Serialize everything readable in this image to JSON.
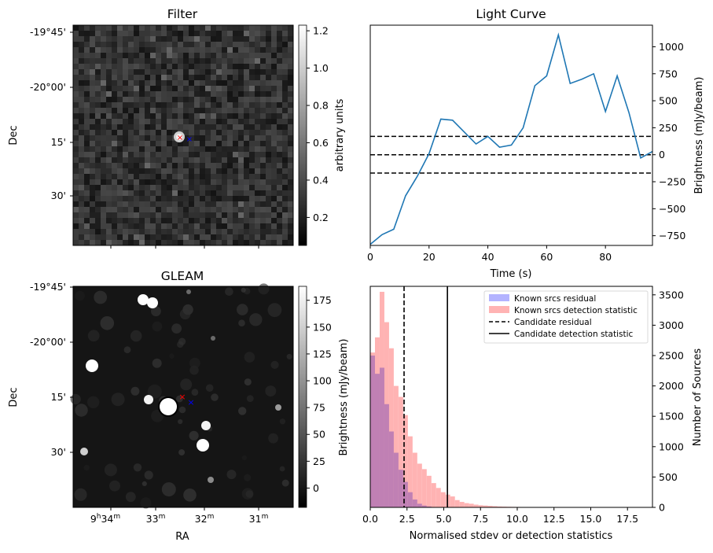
{
  "colors": {
    "line": "#1f77b4",
    "hist_residual": "#b3b3ff",
    "hist_detection": "#ffb3b3",
    "overlap": "#c080b4",
    "marker_a": "#ff0000",
    "marker_b": "#0000ff"
  },
  "panels": {
    "filter": {
      "title": "Filter",
      "ylabel": "Dec",
      "yticks": [
        "-19°45'",
        "-20°00'",
        "15'",
        "30'"
      ],
      "colorbar": {
        "label": "arbitrary units",
        "ticks": [
          "0.2",
          "0.4",
          "0.6",
          "0.8",
          "1.0",
          "1.2"
        ],
        "range": [
          0.05,
          1.23
        ]
      }
    },
    "gleam": {
      "title": "GLEAM",
      "ylabel": "Dec",
      "xlabel": "RA",
      "yticks": [
        "-19°45'",
        "-20°00'",
        "15'",
        "30'"
      ],
      "xticks": [
        {
          "main": "9",
          "sup1": "h",
          "mid": "34",
          "sup2": "m"
        },
        {
          "main": "",
          "sup1": "",
          "mid": "33",
          "sup2": "m"
        },
        {
          "main": "",
          "sup1": "",
          "mid": "32",
          "sup2": "m"
        },
        {
          "main": "",
          "sup1": "",
          "mid": "31",
          "sup2": "m"
        }
      ],
      "colorbar": {
        "label": "Brightness (mJy/beam)",
        "ticks": [
          "0",
          "25",
          "50",
          "75",
          "100",
          "125",
          "150",
          "175"
        ],
        "range": [
          -18,
          188
        ]
      }
    }
  },
  "chart_data": [
    {
      "type": "line",
      "title": "Light Curve",
      "xlabel": "Time (s)",
      "ylabel": "Brightness (mJy/beam)",
      "xlim": [
        0,
        96
      ],
      "ylim": [
        -840,
        1200
      ],
      "xticks": [
        0,
        20,
        40,
        60,
        80
      ],
      "yticks": [
        -750,
        -500,
        -250,
        0,
        250,
        500,
        750,
        1000
      ],
      "x": [
        0,
        4,
        8,
        12,
        16,
        20,
        24,
        28,
        32,
        36,
        40,
        44,
        48,
        52,
        56,
        60,
        64,
        68,
        72,
        76,
        80,
        84,
        88,
        92,
        96
      ],
      "y": [
        -830,
        -740,
        -690,
        -380,
        -200,
        10,
        330,
        320,
        210,
        100,
        170,
        70,
        90,
        250,
        640,
        730,
        1110,
        660,
        700,
        750,
        400,
        730,
        390,
        -30,
        30
      ],
      "hlines": [
        {
          "y": 0,
          "style": "dashed"
        },
        {
          "y": 170,
          "style": "dashed"
        },
        {
          "y": -170,
          "style": "dashed"
        }
      ]
    },
    {
      "type": "histogram",
      "xlabel": "Normalised stdev or detection statistics",
      "ylabel": "Number of Sources",
      "xlim": [
        0,
        19.2
      ],
      "ylim": [
        0,
        3640
      ],
      "xticks": [
        "0.0",
        "2.5",
        "5.0",
        "7.5",
        "10.0",
        "12.5",
        "15.0",
        "17.5"
      ],
      "yticks": [
        0,
        500,
        1000,
        1500,
        2000,
        2500,
        3000,
        3500
      ],
      "bin_width": 0.32,
      "series": [
        {
          "name": "Known srcs residual",
          "values": [
            2500,
            2200,
            2300,
            1700,
            1250,
            900,
            620,
            420,
            250,
            130,
            60,
            30,
            15
          ]
        },
        {
          "name": "Known srcs detection statistic",
          "values": [
            2550,
            2800,
            3550,
            3050,
            2620,
            2000,
            1820,
            1520,
            1170,
            900,
            720,
            630,
            520,
            400,
            320,
            250,
            210,
            180,
            120,
            90,
            70,
            60,
            45,
            35,
            30,
            25,
            20,
            15,
            12,
            10,
            8,
            7,
            6,
            5,
            4,
            4,
            3,
            3,
            2,
            2,
            2,
            2,
            1,
            1,
            1,
            1,
            1,
            1,
            1,
            1,
            0,
            1,
            0,
            0,
            1,
            0,
            0,
            0,
            1
          ]
        }
      ],
      "vlines": [
        {
          "name": "Candidate residual",
          "x": 2.3,
          "style": "dashed"
        },
        {
          "name": "Candidate detection statistic",
          "x": 5.25,
          "style": "solid"
        }
      ]
    }
  ]
}
